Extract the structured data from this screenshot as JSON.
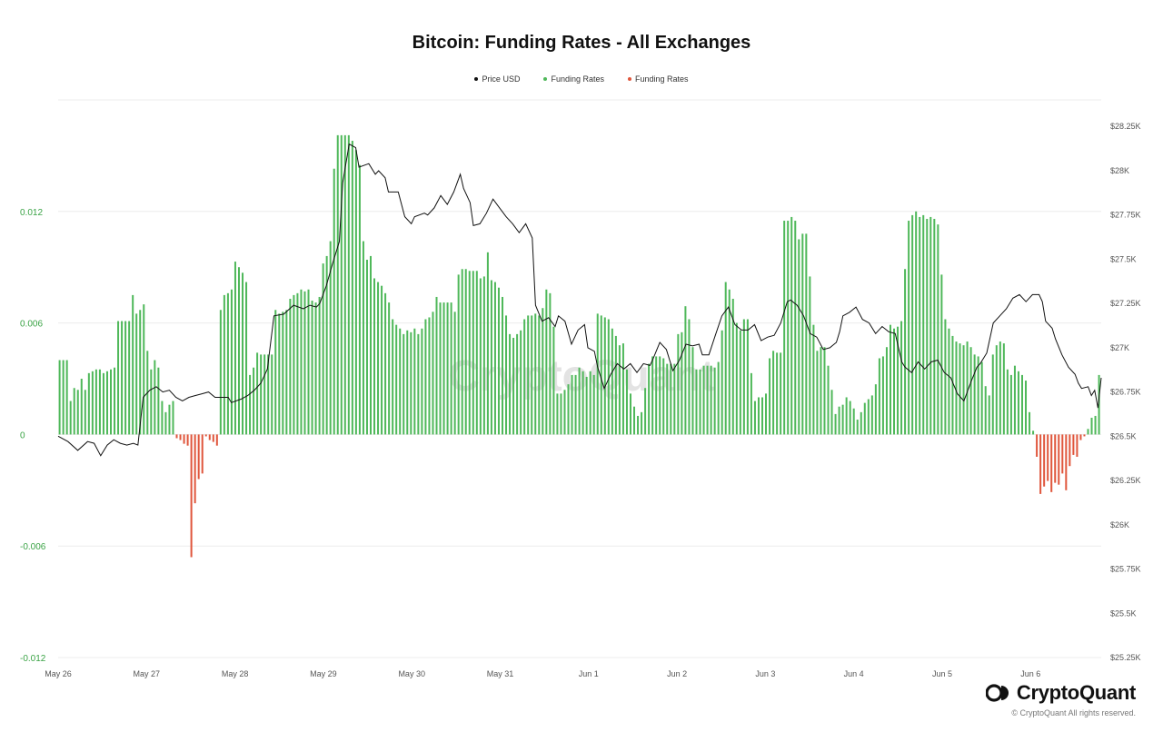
{
  "legend": {
    "price_label": "Price USD",
    "funding_pos_label": "Funding Rates",
    "funding_neg_label": "Funding Rates"
  },
  "branding": {
    "name": "CryptoQuant",
    "copyright": "© CryptoQuant All rights reserved.",
    "watermark": "CryptoQuant"
  },
  "colors": {
    "positive": "#4fb85a",
    "negative": "#e0563c",
    "price": "#111111",
    "grid": "#ececec",
    "left_axis": "#3aa345"
  },
  "chart_data": {
    "type": "bar",
    "title": "Bitcoin: Funding Rates - All Exchanges",
    "grid": true,
    "legend_position": "top-center",
    "x_axis": {
      "ticks": [
        "May 26",
        "May 27",
        "May 28",
        "May 29",
        "May 30",
        "May 31",
        "Jun 1",
        "Jun 2",
        "Jun 3",
        "Jun 4",
        "Jun 5",
        "Jun 6"
      ],
      "range_days": [
        0,
        11.3
      ]
    },
    "y_left": {
      "range": [
        -0.012,
        0.018
      ],
      "ticks": [
        -0.012,
        -0.006,
        0,
        0.006,
        0.012
      ],
      "tick_labels": [
        "-0.012",
        "-0.006",
        "0",
        "0.006",
        "0.012"
      ]
    },
    "y_right": {
      "range": [
        25250,
        28400
      ],
      "ticks": [
        25250,
        25500,
        25750,
        26000,
        26250,
        26500,
        26750,
        27000,
        27250,
        27500,
        27750,
        28000,
        28250
      ],
      "tick_labels": [
        "$25.25K",
        "$25.5K",
        "$25.75K",
        "$26K",
        "$26.25K",
        "$26.5K",
        "$26.75K",
        "$27K",
        "$27.25K",
        "$27.5K",
        "$27.75K",
        "$28K",
        "$28.25K"
      ]
    },
    "series": [
      {
        "name": "Funding Rates",
        "kind": "bar",
        "axis": "left",
        "values": [
          0.004,
          0.004,
          0.004,
          0.0018,
          0.0025,
          0.0024,
          0.003,
          0.0024,
          0.0033,
          0.0034,
          0.0035,
          0.0035,
          0.0033,
          0.0034,
          0.0035,
          0.0036,
          0.0061,
          0.0061,
          0.0061,
          0.0061,
          0.0075,
          0.0065,
          0.0067,
          0.007,
          0.0045,
          0.0035,
          0.004,
          0.0036,
          0.0018,
          0.0012,
          0.0016,
          0.0018,
          -0.0002,
          -0.0003,
          -0.0005,
          -0.0006,
          -0.0066,
          -0.0037,
          -0.0024,
          -0.0021,
          -0.0001,
          -0.0003,
          -0.0004,
          -0.0006,
          0.0067,
          0.0075,
          0.0076,
          0.0078,
          0.0093,
          0.009,
          0.0087,
          0.0082,
          0.0032,
          0.0036,
          0.0044,
          0.0043,
          0.0043,
          0.0043,
          0.0043,
          0.0067,
          0.0065,
          0.0066,
          0.0067,
          0.0073,
          0.0075,
          0.0076,
          0.0078,
          0.0077,
          0.0078,
          0.0072,
          0.0071,
          0.0074,
          0.0092,
          0.0096,
          0.0104,
          0.0143,
          0.0161,
          0.0161,
          0.0161,
          0.0161,
          0.0158,
          0.0153,
          0.0145,
          0.0104,
          0.0094,
          0.0096,
          0.0084,
          0.0082,
          0.008,
          0.0076,
          0.0071,
          0.0062,
          0.0059,
          0.0057,
          0.0054,
          0.0056,
          0.0055,
          0.0057,
          0.0054,
          0.0057,
          0.0062,
          0.0063,
          0.0066,
          0.0074,
          0.0071,
          0.0071,
          0.0071,
          0.0071,
          0.0066,
          0.0086,
          0.0089,
          0.0089,
          0.0088,
          0.0088,
          0.0088,
          0.0084,
          0.0085,
          0.0098,
          0.0083,
          0.0082,
          0.0079,
          0.0074,
          0.0064,
          0.0054,
          0.0052,
          0.0054,
          0.0056,
          0.0062,
          0.0064,
          0.0064,
          0.0065,
          0.0064,
          0.0068,
          0.0078,
          0.0076,
          0.0058,
          0.0022,
          0.0022,
          0.0024,
          0.0027,
          0.0032,
          0.0032,
          0.0036,
          0.0034,
          0.0031,
          0.0034,
          0.0032,
          0.0065,
          0.0064,
          0.0063,
          0.0062,
          0.0057,
          0.0053,
          0.0048,
          0.0049,
          0.0035,
          0.0022,
          0.0015,
          0.001,
          0.0012,
          0.0025,
          0.0038,
          0.0042,
          0.0042,
          0.0042,
          0.0041,
          0.0038,
          0.0038,
          0.0038,
          0.0054,
          0.0055,
          0.0069,
          0.0062,
          0.0047,
          0.0035,
          0.0035,
          0.0037,
          0.0037,
          0.0037,
          0.0036,
          0.0039,
          0.0056,
          0.0082,
          0.0078,
          0.0073,
          0.006,
          0.0056,
          0.0062,
          0.0062,
          0.0033,
          0.0018,
          0.002,
          0.002,
          0.0022,
          0.0041,
          0.0045,
          0.0044,
          0.0044,
          0.0115,
          0.0115,
          0.0117,
          0.0115,
          0.0105,
          0.0108,
          0.0108,
          0.0085,
          0.0059,
          0.0045,
          0.0047,
          0.0047,
          0.0037,
          0.0024,
          0.0011,
          0.0015,
          0.0016,
          0.002,
          0.0018,
          0.0014,
          0.0008,
          0.0012,
          0.0017,
          0.0019,
          0.0021,
          0.0027,
          0.0041,
          0.0042,
          0.0047,
          0.0059,
          0.0057,
          0.0058,
          0.0061,
          0.0089,
          0.0115,
          0.0118,
          0.012,
          0.0117,
          0.0118,
          0.0116,
          0.0117,
          0.0116,
          0.0113,
          0.0086,
          0.0062,
          0.0057,
          0.0053,
          0.005,
          0.0049,
          0.0048,
          0.005,
          0.0047,
          0.0043,
          0.0042,
          0.0039,
          0.0026,
          0.0021,
          0.0043,
          0.0048,
          0.005,
          0.0049,
          0.0035,
          0.0032,
          0.0037,
          0.0034,
          0.0032,
          0.0029,
          0.0012,
          0.0002,
          -0.0012,
          -0.0032,
          -0.0028,
          -0.0025,
          -0.0031,
          -0.0026,
          -0.0027,
          -0.0021,
          -0.003,
          -0.0017,
          -0.0011,
          -0.0012,
          -0.0003,
          -0.0001,
          0.0003,
          0.0009,
          0.001,
          0.0032
        ]
      },
      {
        "name": "Price USD",
        "kind": "line",
        "axis": "right",
        "points": [
          [
            0.0,
            26500
          ],
          [
            0.15,
            26470
          ],
          [
            0.3,
            26420
          ],
          [
            0.45,
            26470
          ],
          [
            0.55,
            26460
          ],
          [
            0.65,
            26390
          ],
          [
            0.75,
            26450
          ],
          [
            0.85,
            26480
          ],
          [
            0.95,
            26460
          ],
          [
            1.05,
            26450
          ],
          [
            1.15,
            26460
          ],
          [
            1.22,
            26450
          ],
          [
            1.3,
            26720
          ],
          [
            1.4,
            26760
          ],
          [
            1.5,
            26780
          ],
          [
            1.6,
            26750
          ],
          [
            1.7,
            26760
          ],
          [
            1.8,
            26720
          ],
          [
            1.9,
            26700
          ],
          [
            2.0,
            26720
          ],
          [
            2.1,
            26730
          ],
          [
            2.2,
            26740
          ],
          [
            2.3,
            26750
          ],
          [
            2.4,
            26720
          ],
          [
            2.5,
            26720
          ],
          [
            2.6,
            26720
          ],
          [
            2.65,
            26690
          ],
          [
            2.8,
            26710
          ],
          [
            2.9,
            26730
          ],
          [
            3.0,
            26760
          ],
          [
            3.1,
            26800
          ],
          [
            3.2,
            26880
          ],
          [
            3.3,
            27180
          ],
          [
            3.45,
            27190
          ],
          [
            3.6,
            27240
          ],
          [
            3.75,
            27220
          ],
          [
            3.85,
            27240
          ],
          [
            3.95,
            27230
          ],
          [
            4.0,
            27250
          ],
          [
            4.1,
            27350
          ],
          [
            4.2,
            27480
          ],
          [
            4.3,
            27600
          ],
          [
            4.35,
            27930
          ],
          [
            4.45,
            28150
          ],
          [
            4.55,
            28130
          ],
          [
            4.6,
            28020
          ],
          [
            4.75,
            28040
          ],
          [
            4.85,
            27980
          ],
          [
            4.9,
            28000
          ],
          [
            5.0,
            27960
          ],
          [
            5.05,
            27880
          ],
          [
            5.2,
            27880
          ],
          [
            5.3,
            27740
          ],
          [
            5.4,
            27700
          ],
          [
            5.45,
            27740
          ],
          [
            5.6,
            27760
          ],
          [
            5.65,
            27750
          ],
          [
            5.75,
            27790
          ],
          [
            5.85,
            27860
          ],
          [
            5.95,
            27810
          ],
          [
            6.05,
            27880
          ],
          [
            6.15,
            27980
          ],
          [
            6.2,
            27900
          ],
          [
            6.3,
            27820
          ],
          [
            6.35,
            27690
          ],
          [
            6.45,
            27700
          ],
          [
            6.55,
            27760
          ],
          [
            6.65,
            27840
          ],
          [
            6.75,
            27790
          ],
          [
            6.85,
            27740
          ],
          [
            6.95,
            27700
          ],
          [
            7.05,
            27650
          ],
          [
            7.15,
            27700
          ],
          [
            7.25,
            27620
          ],
          [
            7.3,
            27240
          ],
          [
            7.4,
            27150
          ],
          [
            7.5,
            27170
          ],
          [
            7.6,
            27120
          ],
          [
            7.65,
            27180
          ],
          [
            7.75,
            27150
          ],
          [
            7.85,
            27020
          ],
          [
            7.95,
            27100
          ],
          [
            8.05,
            27130
          ],
          [
            8.1,
            27000
          ],
          [
            8.2,
            26980
          ],
          [
            8.25,
            26890
          ],
          [
            8.35,
            26770
          ],
          [
            8.45,
            26850
          ],
          [
            8.55,
            26910
          ],
          [
            8.65,
            26880
          ],
          [
            8.75,
            26910
          ],
          [
            8.85,
            26860
          ],
          [
            8.95,
            26910
          ],
          [
            9.05,
            26900
          ],
          [
            9.1,
            26940
          ],
          [
            9.2,
            27030
          ],
          [
            9.3,
            26990
          ],
          [
            9.4,
            26870
          ],
          [
            9.5,
            26930
          ],
          [
            9.6,
            27020
          ],
          [
            9.7,
            27010
          ],
          [
            9.8,
            27020
          ],
          [
            9.85,
            26960
          ],
          [
            9.95,
            26960
          ],
          [
            10.05,
            27070
          ],
          [
            10.15,
            27180
          ],
          [
            10.25,
            27230
          ],
          [
            10.35,
            27130
          ],
          [
            10.45,
            27100
          ],
          [
            10.55,
            27100
          ],
          [
            10.65,
            27130
          ],
          [
            10.75,
            27040
          ],
          [
            10.85,
            27060
          ],
          [
            10.95,
            27070
          ],
          [
            11.05,
            27140
          ],
          [
            11.15,
            27260
          ],
          [
            11.2,
            27270
          ],
          [
            11.3,
            27240
          ],
          [
            11.4,
            27180
          ],
          [
            11.5,
            27080
          ],
          [
            11.6,
            27060
          ],
          [
            11.7,
            26990
          ],
          [
            11.8,
            27000
          ],
          [
            11.9,
            27030
          ],
          [
            11.95,
            27090
          ],
          [
            12.0,
            27180
          ],
          [
            12.1,
            27200
          ],
          [
            12.2,
            27230
          ],
          [
            12.3,
            27160
          ],
          [
            12.4,
            27140
          ],
          [
            12.5,
            27080
          ],
          [
            12.6,
            27120
          ],
          [
            12.7,
            27090
          ],
          [
            12.8,
            27080
          ],
          [
            12.9,
            26920
          ],
          [
            12.95,
            26890
          ],
          [
            13.05,
            26860
          ],
          [
            13.15,
            26920
          ],
          [
            13.25,
            26880
          ],
          [
            13.35,
            26920
          ],
          [
            13.45,
            26930
          ],
          [
            13.55,
            26860
          ],
          [
            13.65,
            26830
          ],
          [
            13.75,
            26740
          ],
          [
            13.85,
            26700
          ],
          [
            13.95,
            26800
          ],
          [
            14.05,
            26890
          ],
          [
            14.1,
            26910
          ],
          [
            14.2,
            26970
          ],
          [
            14.3,
            27140
          ],
          [
            14.4,
            27180
          ],
          [
            14.5,
            27220
          ],
          [
            14.6,
            27280
          ],
          [
            14.7,
            27300
          ],
          [
            14.8,
            27260
          ],
          [
            14.9,
            27300
          ],
          [
            15.0,
            27300
          ],
          [
            15.05,
            27260
          ],
          [
            15.1,
            27150
          ],
          [
            15.2,
            27110
          ],
          [
            15.25,
            27050
          ],
          [
            15.35,
            26960
          ],
          [
            15.45,
            26890
          ],
          [
            15.55,
            26850
          ],
          [
            15.6,
            26800
          ],
          [
            15.65,
            26770
          ],
          [
            15.75,
            26780
          ],
          [
            15.8,
            26730
          ],
          [
            15.85,
            26760
          ],
          [
            15.9,
            26660
          ],
          [
            15.95,
            26830
          ]
        ],
        "points_units": "x = days since May 26 (two half-steps per day), y = USD"
      }
    ]
  }
}
